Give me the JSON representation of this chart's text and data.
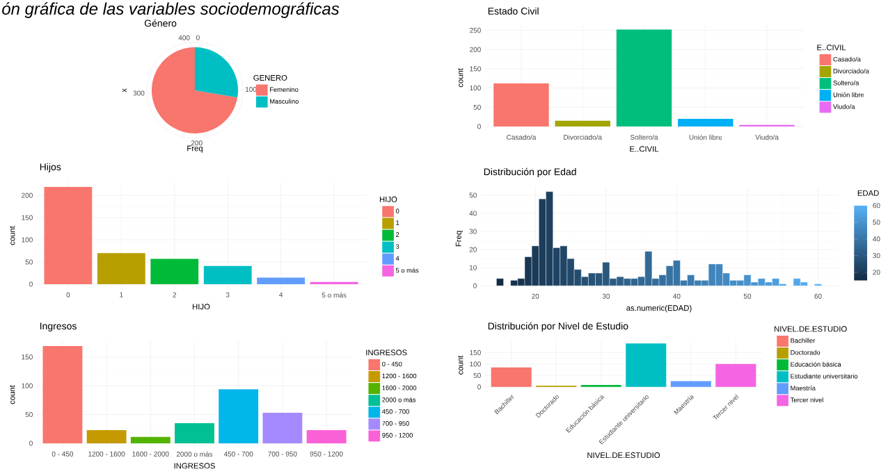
{
  "chart_data": [
    {
      "type": "pie",
      "title": "Género",
      "xlabel": "Freq",
      "ylabel": "x",
      "legend_title": "GENERO",
      "legend": "right",
      "grid": true,
      "annotations": [
        "ón gráfica de las variables sociodemográficas",
        "0",
        "100",
        "200",
        "300",
        "400"
      ],
      "categories": [
        "Femenino",
        "Masculino"
      ],
      "values": [
        72.35,
        27.65
      ],
      "colors": [
        "#f8766d",
        "#00bfc4"
      ]
    },
    {
      "type": "bar",
      "stacked": true,
      "title": "Estado Civil",
      "xlabel": "E..CIVIL",
      "ylabel": "count",
      "legend_title": "E..CIVIL",
      "legend": "right",
      "grid": true,
      "categories": [
        "Casado/a",
        "Divorciado/a",
        "Soltero/a",
        "Unión libre",
        "Viudo/a"
      ],
      "series": [
        {
          "name": "Casado/a",
          "color": "#f8766d",
          "values": [
            112,
            null,
            null,
            null,
            null
          ]
        },
        {
          "name": "Divorciado/a",
          "color": "#a3a500",
          "values": [
            null,
            15,
            null,
            null,
            null
          ]
        },
        {
          "name": "Soltero/a",
          "color": "#00bf7d",
          "values": [
            null,
            null,
            252,
            null,
            null
          ]
        },
        {
          "name": "Unión libre",
          "color": "#00b0f6",
          "values": [
            null,
            null,
            null,
            20,
            null
          ]
        },
        {
          "name": "Viudo/a",
          "color": "#e76bf3",
          "values": [
            null,
            null,
            null,
            null,
            4
          ]
        }
      ],
      "ylim": [
        -12.6,
        265.6
      ],
      "yticks": [
        0,
        50,
        100,
        150,
        200,
        250
      ]
    },
    {
      "type": "bar",
      "stacked": true,
      "title": "Hijos",
      "xlabel": "HIJO",
      "ylabel": "count",
      "legend_title": "HIJO",
      "legend": "right",
      "grid": true,
      "categories": [
        "0",
        "1",
        "2",
        "3",
        "4",
        "5 o más"
      ],
      "series": [
        {
          "name": "0",
          "color": "#f8766d",
          "values": [
            219,
            null,
            null,
            null,
            null,
            null
          ]
        },
        {
          "name": "1",
          "color": "#b79f00",
          "values": [
            null,
            70,
            null,
            null,
            null,
            null
          ]
        },
        {
          "name": "2",
          "color": "#00ba38",
          "values": [
            null,
            null,
            57,
            null,
            null,
            null
          ]
        },
        {
          "name": "3",
          "color": "#00bfc4",
          "values": [
            null,
            null,
            null,
            41,
            null,
            null
          ]
        },
        {
          "name": "4",
          "color": "#619cff",
          "values": [
            null,
            null,
            null,
            null,
            15,
            null
          ]
        },
        {
          "name": "5 o más",
          "color": "#f564e3",
          "values": [
            null,
            null,
            null,
            null,
            null,
            5
          ]
        }
      ],
      "ylim": [
        -11,
        230
      ],
      "yticks": [
        0,
        50,
        100,
        150,
        200
      ]
    },
    {
      "type": "histogram",
      "title": "Distribución por Edad",
      "xlabel": "as.numeric(EDAD)",
      "ylabel": "Freq",
      "clabel": "EDAD",
      "grid": true,
      "bins": [
        14.5,
        15.5,
        16.5,
        17.5,
        18.5,
        19.5,
        20.5,
        21.5,
        22.5,
        23.5,
        24.5,
        25.5,
        26.5,
        27.5,
        28.5,
        29.5,
        30.5,
        31.5,
        32.5,
        33.5,
        34.5,
        35.5,
        36.5,
        37.5,
        38.5,
        39.5,
        40.5,
        41.5,
        42.5,
        43.5,
        44.5,
        45.5,
        46.5,
        47.5,
        48.5,
        49.5,
        50.5,
        51.5,
        52.5,
        53.5,
        54.5,
        55.5,
        56.5,
        57.5,
        58.5,
        59.5,
        60.5
      ],
      "values": [
        4,
        0,
        3,
        4,
        16,
        22,
        48,
        52,
        21,
        22,
        15,
        9,
        5,
        7,
        7,
        13,
        4,
        5,
        4,
        4,
        5,
        19,
        4,
        6,
        11,
        14,
        3,
        6,
        3,
        3,
        12,
        12,
        7,
        3,
        3,
        6,
        2,
        4,
        2,
        4,
        1,
        0,
        4,
        2,
        0,
        1
      ],
      "xlim": [
        12.2,
        62.8
      ],
      "xticks": [
        20,
        30,
        40,
        50,
        60
      ],
      "ylim": [
        -2.6,
        54.6
      ],
      "yticks": [
        0,
        10,
        20,
        30,
        40,
        50
      ],
      "clim": [
        15,
        60
      ],
      "cticks": [
        20,
        30,
        40,
        50,
        60
      ]
    },
    {
      "type": "bar",
      "stacked": true,
      "title": "Ingresos",
      "xlabel": "INGRESOS",
      "ylabel": "count",
      "legend_title": "INGRESOS",
      "legend": "right",
      "grid": true,
      "categories": [
        "0 - 450",
        "1200 - 1600",
        "1600 - 2000",
        "2000 o más",
        "450 - 700",
        "700 - 950",
        "950 - 1200"
      ],
      "series": [
        {
          "name": "0 - 450",
          "color": "#f8766d",
          "values": [
            169,
            null,
            null,
            null,
            null,
            null,
            null
          ]
        },
        {
          "name": "1200 - 1600",
          "color": "#c49a00",
          "values": [
            null,
            23,
            null,
            null,
            null,
            null,
            null
          ]
        },
        {
          "name": "1600 - 2000",
          "color": "#53b400",
          "values": [
            null,
            null,
            11,
            null,
            null,
            null,
            null
          ]
        },
        {
          "name": "2000 o más",
          "color": "#00c094",
          "values": [
            null,
            null,
            null,
            35,
            null,
            null,
            null
          ]
        },
        {
          "name": "450 - 700",
          "color": "#00b6eb",
          "values": [
            null,
            null,
            null,
            null,
            94,
            null,
            null
          ]
        },
        {
          "name": "700 - 950",
          "color": "#a58aff",
          "values": [
            null,
            null,
            null,
            null,
            null,
            53,
            null
          ]
        },
        {
          "name": "950 - 1200",
          "color": "#fb61d7",
          "values": [
            null,
            null,
            null,
            null,
            null,
            null,
            23
          ]
        }
      ],
      "ylim": [
        -8.5,
        177.5
      ],
      "yticks": [
        0,
        50,
        100,
        150
      ]
    },
    {
      "type": "bar",
      "stacked": true,
      "title": "Distribución por Nivel de Estudio",
      "xlabel": "NIVEL.DE.ESTUDIO",
      "ylabel": "count",
      "legend_title": "NIVEL.DE.ESTUDIO",
      "legend": "right",
      "grid": true,
      "categories": [
        "Bachiller",
        "Doctorado",
        "Educación básica",
        "Estudiante universitario",
        "Maestría",
        "Tercer nivel"
      ],
      "series": [
        {
          "name": "Bachiller",
          "color": "#f8766d",
          "values": [
            85,
            null,
            null,
            null,
            null,
            null
          ]
        },
        {
          "name": "Doctorado",
          "color": "#b79f00",
          "values": [
            null,
            6,
            null,
            null,
            null,
            null
          ]
        },
        {
          "name": "Educación básica",
          "color": "#00ba38",
          "values": [
            null,
            null,
            9,
            null,
            null,
            null
          ]
        },
        {
          "name": "Estudiante universitario",
          "color": "#00bfc4",
          "values": [
            null,
            null,
            null,
            190,
            null,
            null
          ]
        },
        {
          "name": "Maestría",
          "color": "#619cff",
          "values": [
            null,
            null,
            null,
            null,
            25,
            null
          ]
        },
        {
          "name": "Tercer nivel",
          "color": "#f564e3",
          "values": [
            null,
            null,
            null,
            null,
            null,
            100
          ]
        }
      ],
      "ylim": [
        -9.5,
        199.5
      ],
      "yticks": [
        0,
        50,
        100,
        150
      ]
    }
  ]
}
